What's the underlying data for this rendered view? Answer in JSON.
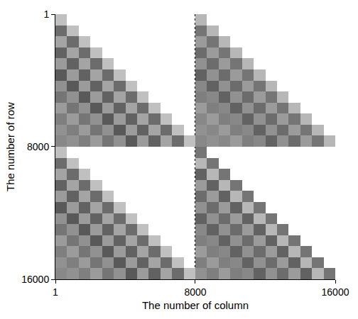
{
  "chart_data": {
    "type": "heatmap",
    "x_label": "The number of column",
    "y_label": "The number of row",
    "xlim": [
      1,
      16000
    ],
    "ylim": [
      16000,
      1
    ],
    "xticks": [
      1,
      8000,
      16000
    ],
    "yticks": [
      1,
      8000,
      16000
    ],
    "grid": true,
    "zlim": [
      0,
      1
    ],
    "x": [
      334.3,
      1000.9,
      1667.6,
      2334.2,
      3000.8,
      3667.4,
      4334.1,
      5000.7,
      5667.3,
      6333.9,
      7000.6,
      7667.2,
      8333.8,
      9000.4,
      9667.1,
      10333.7,
      11000.3,
      11666.9,
      12333.6,
      13000.2,
      13666.8,
      14333.4,
      15000.1,
      15666.7
    ],
    "y": [
      334.3,
      1000.9,
      1667.6,
      2334.2,
      3000.8,
      3667.4,
      4334.1,
      5000.7,
      5667.3,
      6333.9,
      7000.6,
      7667.2,
      8333.8,
      9000.4,
      9667.1,
      10333.7,
      11000.3,
      11666.9,
      12333.6,
      13000.2,
      13666.8,
      14333.4,
      15000.1,
      15666.7
    ],
    "z": [
      [
        0.8,
        null,
        null,
        null,
        null,
        null,
        null,
        null,
        null,
        null,
        null,
        null,
        0.75,
        null,
        null,
        null,
        null,
        null,
        null,
        null,
        null,
        null,
        null,
        null
      ],
      [
        0.35,
        0.8,
        null,
        null,
        null,
        null,
        null,
        null,
        null,
        null,
        null,
        null,
        0.4,
        0.75,
        null,
        null,
        null,
        null,
        null,
        null,
        null,
        null,
        null,
        null
      ],
      [
        0.65,
        0.35,
        0.8,
        null,
        null,
        null,
        null,
        null,
        null,
        null,
        null,
        null,
        0.6,
        0.4,
        0.75,
        null,
        null,
        null,
        null,
        null,
        null,
        null,
        null,
        null
      ],
      [
        0.3,
        0.65,
        0.35,
        0.8,
        null,
        null,
        null,
        null,
        null,
        null,
        null,
        null,
        0.35,
        0.6,
        0.4,
        0.75,
        null,
        null,
        null,
        null,
        null,
        null,
        null,
        null
      ],
      [
        0.6,
        0.3,
        0.65,
        0.35,
        0.8,
        null,
        null,
        null,
        null,
        null,
        null,
        null,
        0.55,
        0.35,
        0.6,
        0.4,
        0.75,
        null,
        null,
        null,
        null,
        null,
        null,
        null
      ],
      [
        0.25,
        0.6,
        0.3,
        0.65,
        0.35,
        0.8,
        null,
        null,
        null,
        null,
        null,
        null,
        0.3,
        0.55,
        0.35,
        0.6,
        0.4,
        0.75,
        null,
        null,
        null,
        null,
        null,
        null
      ],
      [
        0.55,
        0.25,
        0.6,
        0.3,
        0.65,
        0.35,
        0.8,
        null,
        null,
        null,
        null,
        null,
        0.5,
        0.3,
        0.55,
        0.35,
        0.6,
        0.4,
        0.75,
        null,
        null,
        null,
        null,
        null
      ],
      [
        0.4,
        0.55,
        0.25,
        0.6,
        0.3,
        0.65,
        0.35,
        0.8,
        null,
        null,
        null,
        null,
        0.45,
        0.5,
        0.3,
        0.55,
        0.35,
        0.6,
        0.4,
        0.75,
        null,
        null,
        null,
        null
      ],
      [
        0.6,
        0.4,
        0.55,
        0.25,
        0.6,
        0.3,
        0.65,
        0.35,
        0.8,
        null,
        null,
        null,
        0.6,
        0.45,
        0.5,
        0.3,
        0.55,
        0.35,
        0.6,
        0.4,
        0.75,
        null,
        null,
        null
      ],
      [
        0.45,
        0.6,
        0.4,
        0.55,
        0.25,
        0.6,
        0.3,
        0.65,
        0.35,
        0.8,
        null,
        null,
        0.5,
        0.6,
        0.45,
        0.5,
        0.3,
        0.55,
        0.35,
        0.6,
        0.4,
        0.75,
        null,
        null
      ],
      [
        0.55,
        0.45,
        0.6,
        0.4,
        0.55,
        0.25,
        0.6,
        0.3,
        0.65,
        0.35,
        0.8,
        null,
        0.55,
        0.5,
        0.6,
        0.45,
        0.5,
        0.3,
        0.55,
        0.35,
        0.6,
        0.4,
        0.75,
        null
      ],
      [
        0.5,
        0.55,
        0.45,
        0.6,
        0.4,
        0.55,
        0.25,
        0.6,
        0.3,
        0.65,
        0.35,
        0.8,
        0.5,
        0.55,
        0.5,
        0.6,
        0.45,
        0.5,
        0.3,
        0.55,
        0.35,
        0.6,
        0.4,
        0.75
      ],
      [
        0.8,
        null,
        null,
        null,
        null,
        null,
        null,
        null,
        null,
        null,
        null,
        null,
        0.4,
        null,
        null,
        null,
        null,
        null,
        null,
        null,
        null,
        null,
        null,
        null
      ],
      [
        0.35,
        0.8,
        null,
        null,
        null,
        null,
        null,
        null,
        null,
        null,
        null,
        null,
        0.75,
        0.4,
        null,
        null,
        null,
        null,
        null,
        null,
        null,
        null,
        null,
        null
      ],
      [
        0.65,
        0.35,
        0.8,
        null,
        null,
        null,
        null,
        null,
        null,
        null,
        null,
        null,
        0.3,
        0.75,
        0.4,
        null,
        null,
        null,
        null,
        null,
        null,
        null,
        null,
        null
      ],
      [
        0.3,
        0.65,
        0.35,
        0.8,
        null,
        null,
        null,
        null,
        null,
        null,
        null,
        null,
        0.6,
        0.3,
        0.75,
        0.4,
        null,
        null,
        null,
        null,
        null,
        null,
        null,
        null
      ],
      [
        0.6,
        0.3,
        0.65,
        0.35,
        0.8,
        null,
        null,
        null,
        null,
        null,
        null,
        null,
        0.35,
        0.6,
        0.3,
        0.75,
        0.4,
        null,
        null,
        null,
        null,
        null,
        null,
        null
      ],
      [
        0.25,
        0.6,
        0.3,
        0.65,
        0.35,
        0.8,
        null,
        null,
        null,
        null,
        null,
        null,
        0.55,
        0.35,
        0.6,
        0.3,
        0.75,
        0.4,
        null,
        null,
        null,
        null,
        null,
        null
      ],
      [
        0.55,
        0.25,
        0.6,
        0.3,
        0.65,
        0.35,
        0.8,
        null,
        null,
        null,
        null,
        null,
        0.3,
        0.55,
        0.35,
        0.6,
        0.3,
        0.75,
        0.4,
        null,
        null,
        null,
        null,
        null
      ],
      [
        0.4,
        0.55,
        0.25,
        0.6,
        0.3,
        0.65,
        0.35,
        0.8,
        null,
        null,
        null,
        null,
        0.5,
        0.3,
        0.55,
        0.35,
        0.6,
        0.3,
        0.75,
        0.4,
        null,
        null,
        null,
        null
      ],
      [
        0.6,
        0.4,
        0.55,
        0.25,
        0.6,
        0.3,
        0.65,
        0.35,
        0.8,
        null,
        null,
        null,
        0.45,
        0.5,
        0.3,
        0.55,
        0.35,
        0.6,
        0.3,
        0.75,
        0.4,
        null,
        null,
        null
      ],
      [
        0.45,
        0.6,
        0.4,
        0.55,
        0.25,
        0.6,
        0.3,
        0.65,
        0.35,
        0.8,
        null,
        null,
        0.6,
        0.45,
        0.5,
        0.3,
        0.55,
        0.35,
        0.6,
        0.3,
        0.75,
        0.4,
        null,
        null
      ],
      [
        0.55,
        0.45,
        0.6,
        0.4,
        0.55,
        0.25,
        0.6,
        0.3,
        0.65,
        0.35,
        0.8,
        null,
        0.45,
        0.6,
        0.45,
        0.5,
        0.3,
        0.55,
        0.35,
        0.6,
        0.3,
        0.75,
        0.4,
        null
      ],
      [
        0.5,
        0.55,
        0.45,
        0.6,
        0.4,
        0.55,
        0.25,
        0.6,
        0.3,
        0.65,
        0.35,
        0.8,
        0.55,
        0.45,
        0.6,
        0.45,
        0.5,
        0.3,
        0.55,
        0.35,
        0.6,
        0.3,
        0.75,
        0.4
      ]
    ]
  }
}
